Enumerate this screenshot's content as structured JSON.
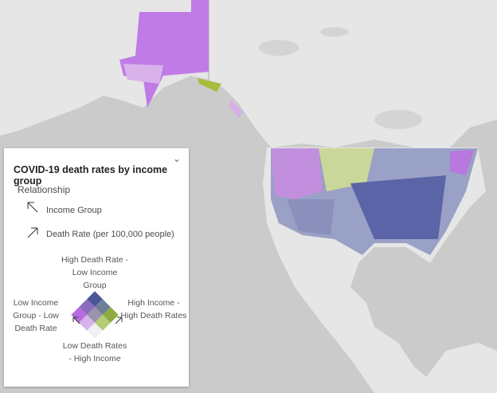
{
  "legend": {
    "title": "COVID-19 death rates by income group",
    "subtitle": "Relationship",
    "axes": [
      "Income Group",
      "Death Rate (per 100,000 people)"
    ],
    "corners": {
      "top": "High Death Rate - Low Income Group",
      "right": "High Income - High Death Rates",
      "left": "Low Income Group - Low Death Rate",
      "bottom": "Low Death Rates - High Income"
    }
  }
}
